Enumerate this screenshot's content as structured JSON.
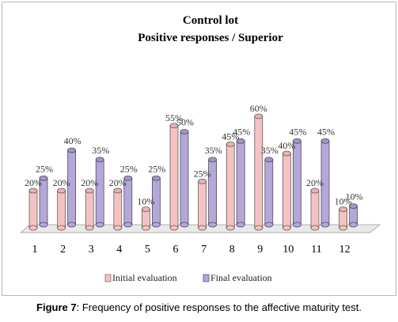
{
  "chart_data": {
    "type": "bar",
    "title": "Control lot",
    "subtitle": "Positive responses / Superior",
    "categories": [
      "1",
      "2",
      "3",
      "4",
      "5",
      "6",
      "7",
      "8",
      "9",
      "10",
      "11",
      "12"
    ],
    "series": [
      {
        "name": "Initial evaluation",
        "values": [
          20,
          20,
          20,
          20,
          10,
          55,
          25,
          45,
          60,
          40,
          20,
          10
        ],
        "labels": [
          "20%",
          "20%",
          "20%",
          "20%",
          "10%",
          "55%",
          "25%",
          "45%",
          "60%",
          "40%",
          "20%",
          "10%"
        ],
        "color": "#f3c3c3"
      },
      {
        "name": "Final evaluation",
        "values": [
          25,
          40,
          35,
          25,
          25,
          50,
          35,
          45,
          35,
          45,
          45,
          10
        ],
        "labels": [
          "25%",
          "40%",
          "35%",
          "25%",
          "25%",
          "50%",
          "35%",
          "45%",
          "35%",
          "45%",
          "45%",
          "10%"
        ],
        "color": "#b4a8d8"
      }
    ],
    "ylim": [
      0,
      60
    ],
    "grid": false,
    "legend_position": "bottom",
    "chart_style": "3d-cylinder"
  },
  "legend": {
    "initial": "Initial evaluation",
    "final": "Final evaluation"
  },
  "caption": {
    "label": "Figure 7",
    "text": ": Frequency of positive responses to the affective maturity test."
  }
}
